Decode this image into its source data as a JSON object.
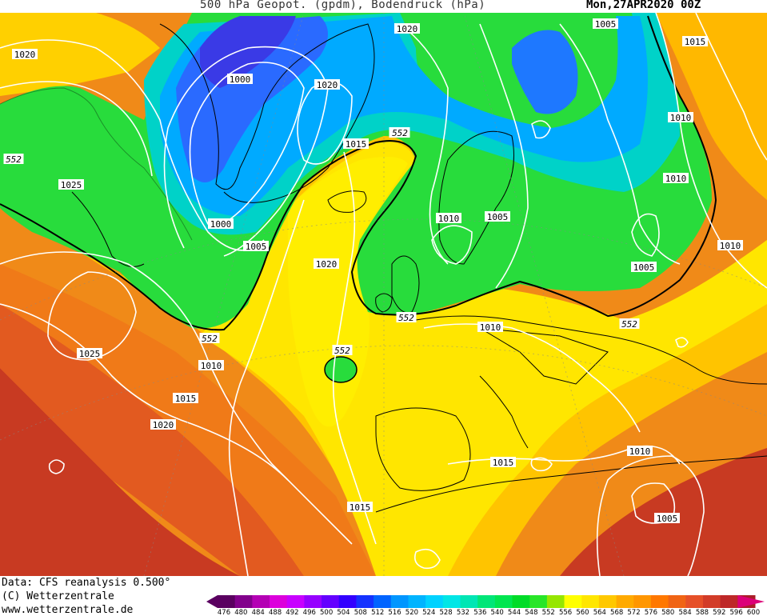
{
  "header": {
    "title": "500 hPa Geopot. (gpdm), Bodendruck (hPa)",
    "date": "Mon,27APR2020 00Z"
  },
  "footer": {
    "data_source": "Data: CFS reanalysis 0.500°",
    "copyright": "(C) Wetterzentrale",
    "website": "www.wetterzentrale.de"
  },
  "legend": {
    "values": [
      "476",
      "480",
      "484",
      "488",
      "492",
      "496",
      "500",
      "504",
      "508",
      "512",
      "516",
      "520",
      "524",
      "528",
      "532",
      "536",
      "540",
      "544",
      "548",
      "552",
      "556",
      "560",
      "564",
      "568",
      "572",
      "576",
      "580",
      "584",
      "588",
      "592",
      "596",
      "600"
    ],
    "colors": [
      "#5a0060",
      "#82008c",
      "#b400b4",
      "#dc00dc",
      "#c800ff",
      "#9600ff",
      "#6400ff",
      "#3200ff",
      "#1432ff",
      "#0064ff",
      "#0096ff",
      "#00b4ff",
      "#00d2ff",
      "#00e6e6",
      "#00e6b4",
      "#00e678",
      "#00e650",
      "#00dc28",
      "#28e628",
      "#96e600",
      "#ffff00",
      "#ffe600",
      "#ffc800",
      "#ffaa00",
      "#ff9600",
      "#ff7800",
      "#f06414",
      "#e65028",
      "#d23c28",
      "#be2828",
      "#aa1e28",
      "#dc0078"
    ]
  },
  "contour_552_labels": [
    "552",
    "552",
    "552",
    "552",
    "552",
    "552",
    "552"
  ],
  "pressure_labels": [
    "1020",
    "1005",
    "1020",
    "1015",
    "1000",
    "1020",
    "1015",
    "1025",
    "1000",
    "1005",
    "1020",
    "1010",
    "1010",
    "1005",
    "1010",
    "1005",
    "1010",
    "1025",
    "1010",
    "1015",
    "1020",
    "1015",
    "1015",
    "1010",
    "1005",
    "1010"
  ],
  "colors": {
    "green_trough": "#28dc3c",
    "yellow_ridge": "#ffee00",
    "orange": "#ffa000",
    "deep_red": "#c83020",
    "blue_low": "#2a6aff",
    "isobar": "#ffffff",
    "coast": "#000000"
  }
}
